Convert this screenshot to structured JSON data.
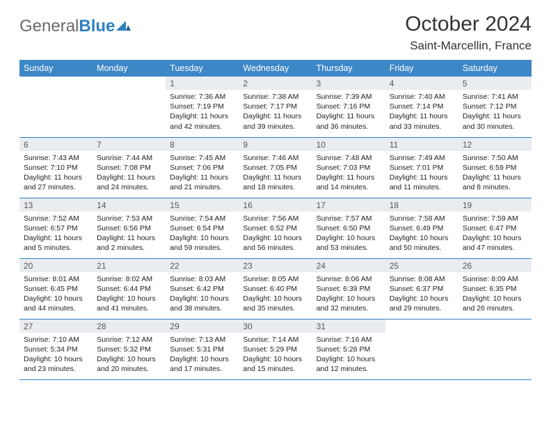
{
  "logo": {
    "general": "General",
    "blue": "Blue"
  },
  "header": {
    "title": "October 2024",
    "location": "Saint-Marcellin, France"
  },
  "colors": {
    "header_bg": "#3d87c7",
    "daynum_bg": "#e9edf1",
    "rule": "#2f7fbf"
  },
  "day_labels": [
    "Sunday",
    "Monday",
    "Tuesday",
    "Wednesday",
    "Thursday",
    "Friday",
    "Saturday"
  ],
  "weeks": [
    [
      {
        "n": "",
        "sr": "",
        "ss": "",
        "dl": ""
      },
      {
        "n": "",
        "sr": "",
        "ss": "",
        "dl": ""
      },
      {
        "n": "1",
        "sr": "Sunrise: 7:36 AM",
        "ss": "Sunset: 7:19 PM",
        "dl": "Daylight: 11 hours and 42 minutes."
      },
      {
        "n": "2",
        "sr": "Sunrise: 7:38 AM",
        "ss": "Sunset: 7:17 PM",
        "dl": "Daylight: 11 hours and 39 minutes."
      },
      {
        "n": "3",
        "sr": "Sunrise: 7:39 AM",
        "ss": "Sunset: 7:16 PM",
        "dl": "Daylight: 11 hours and 36 minutes."
      },
      {
        "n": "4",
        "sr": "Sunrise: 7:40 AM",
        "ss": "Sunset: 7:14 PM",
        "dl": "Daylight: 11 hours and 33 minutes."
      },
      {
        "n": "5",
        "sr": "Sunrise: 7:41 AM",
        "ss": "Sunset: 7:12 PM",
        "dl": "Daylight: 11 hours and 30 minutes."
      }
    ],
    [
      {
        "n": "6",
        "sr": "Sunrise: 7:43 AM",
        "ss": "Sunset: 7:10 PM",
        "dl": "Daylight: 11 hours and 27 minutes."
      },
      {
        "n": "7",
        "sr": "Sunrise: 7:44 AM",
        "ss": "Sunset: 7:08 PM",
        "dl": "Daylight: 11 hours and 24 minutes."
      },
      {
        "n": "8",
        "sr": "Sunrise: 7:45 AM",
        "ss": "Sunset: 7:06 PM",
        "dl": "Daylight: 11 hours and 21 minutes."
      },
      {
        "n": "9",
        "sr": "Sunrise: 7:46 AM",
        "ss": "Sunset: 7:05 PM",
        "dl": "Daylight: 11 hours and 18 minutes."
      },
      {
        "n": "10",
        "sr": "Sunrise: 7:48 AM",
        "ss": "Sunset: 7:03 PM",
        "dl": "Daylight: 11 hours and 14 minutes."
      },
      {
        "n": "11",
        "sr": "Sunrise: 7:49 AM",
        "ss": "Sunset: 7:01 PM",
        "dl": "Daylight: 11 hours and 11 minutes."
      },
      {
        "n": "12",
        "sr": "Sunrise: 7:50 AM",
        "ss": "Sunset: 6:59 PM",
        "dl": "Daylight: 11 hours and 8 minutes."
      }
    ],
    [
      {
        "n": "13",
        "sr": "Sunrise: 7:52 AM",
        "ss": "Sunset: 6:57 PM",
        "dl": "Daylight: 11 hours and 5 minutes."
      },
      {
        "n": "14",
        "sr": "Sunrise: 7:53 AM",
        "ss": "Sunset: 6:56 PM",
        "dl": "Daylight: 11 hours and 2 minutes."
      },
      {
        "n": "15",
        "sr": "Sunrise: 7:54 AM",
        "ss": "Sunset: 6:54 PM",
        "dl": "Daylight: 10 hours and 59 minutes."
      },
      {
        "n": "16",
        "sr": "Sunrise: 7:56 AM",
        "ss": "Sunset: 6:52 PM",
        "dl": "Daylight: 10 hours and 56 minutes."
      },
      {
        "n": "17",
        "sr": "Sunrise: 7:57 AM",
        "ss": "Sunset: 6:50 PM",
        "dl": "Daylight: 10 hours and 53 minutes."
      },
      {
        "n": "18",
        "sr": "Sunrise: 7:58 AM",
        "ss": "Sunset: 6:49 PM",
        "dl": "Daylight: 10 hours and 50 minutes."
      },
      {
        "n": "19",
        "sr": "Sunrise: 7:59 AM",
        "ss": "Sunset: 6:47 PM",
        "dl": "Daylight: 10 hours and 47 minutes."
      }
    ],
    [
      {
        "n": "20",
        "sr": "Sunrise: 8:01 AM",
        "ss": "Sunset: 6:45 PM",
        "dl": "Daylight: 10 hours and 44 minutes."
      },
      {
        "n": "21",
        "sr": "Sunrise: 8:02 AM",
        "ss": "Sunset: 6:44 PM",
        "dl": "Daylight: 10 hours and 41 minutes."
      },
      {
        "n": "22",
        "sr": "Sunrise: 8:03 AM",
        "ss": "Sunset: 6:42 PM",
        "dl": "Daylight: 10 hours and 38 minutes."
      },
      {
        "n": "23",
        "sr": "Sunrise: 8:05 AM",
        "ss": "Sunset: 6:40 PM",
        "dl": "Daylight: 10 hours and 35 minutes."
      },
      {
        "n": "24",
        "sr": "Sunrise: 8:06 AM",
        "ss": "Sunset: 6:39 PM",
        "dl": "Daylight: 10 hours and 32 minutes."
      },
      {
        "n": "25",
        "sr": "Sunrise: 8:08 AM",
        "ss": "Sunset: 6:37 PM",
        "dl": "Daylight: 10 hours and 29 minutes."
      },
      {
        "n": "26",
        "sr": "Sunrise: 8:09 AM",
        "ss": "Sunset: 6:35 PM",
        "dl": "Daylight: 10 hours and 26 minutes."
      }
    ],
    [
      {
        "n": "27",
        "sr": "Sunrise: 7:10 AM",
        "ss": "Sunset: 5:34 PM",
        "dl": "Daylight: 10 hours and 23 minutes."
      },
      {
        "n": "28",
        "sr": "Sunrise: 7:12 AM",
        "ss": "Sunset: 5:32 PM",
        "dl": "Daylight: 10 hours and 20 minutes."
      },
      {
        "n": "29",
        "sr": "Sunrise: 7:13 AM",
        "ss": "Sunset: 5:31 PM",
        "dl": "Daylight: 10 hours and 17 minutes."
      },
      {
        "n": "30",
        "sr": "Sunrise: 7:14 AM",
        "ss": "Sunset: 5:29 PM",
        "dl": "Daylight: 10 hours and 15 minutes."
      },
      {
        "n": "31",
        "sr": "Sunrise: 7:16 AM",
        "ss": "Sunset: 5:28 PM",
        "dl": "Daylight: 10 hours and 12 minutes."
      },
      {
        "n": "",
        "sr": "",
        "ss": "",
        "dl": ""
      },
      {
        "n": "",
        "sr": "",
        "ss": "",
        "dl": ""
      }
    ]
  ]
}
